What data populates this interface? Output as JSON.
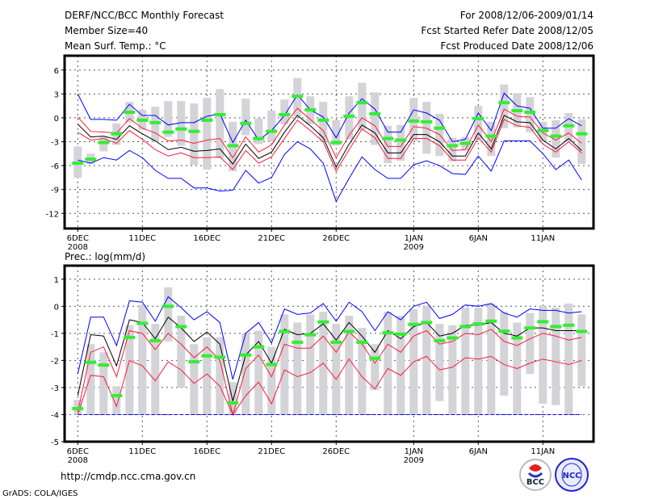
{
  "header": {
    "title": "DERF/NCC/BCC Monthly Forecast",
    "member_size": "Member Size=40",
    "temp_label": "Mean Surf. Temp.: °C",
    "period": "For 2008/12/06-2009/01/14",
    "started": "Fcst Started Refer Date 2008/12/05",
    "produced": "Fcst Produced Date 2008/12/06"
  },
  "footer": {
    "url": "http://cmdp.ncc.cma.gov.cn",
    "credit": "GrADS: COLA/IGES",
    "logo_bcc": "BCC",
    "logo_ncc": "NCC"
  },
  "colors": {
    "max_min": "#0000ff",
    "band": "#ff1a3c",
    "mean": "#000000",
    "obs": "#33ee33",
    "spread": "#d3d3d8"
  },
  "chart_data": [
    {
      "type": "line",
      "title": "Mean Surf. Temp.: °C",
      "x_start": "2008-12-06",
      "days": 40,
      "xticks": [
        {
          "day": 0,
          "label": "6DEC",
          "sub": "2008"
        },
        {
          "day": 5,
          "label": "11DEC"
        },
        {
          "day": 10,
          "label": "16DEC"
        },
        {
          "day": 15,
          "label": "21DEC"
        },
        {
          "day": 20,
          "label": "26DEC"
        },
        {
          "day": 26,
          "label": "1JAN",
          "sub": "2009"
        },
        {
          "day": 31,
          "label": "6JAN"
        },
        {
          "day": 36,
          "label": "11JAN"
        }
      ],
      "yticks": [
        6,
        3,
        0,
        -3,
        -6,
        -9,
        -12
      ],
      "ylim": [
        -13.9,
        7.8
      ],
      "grid": true,
      "spread": [
        [
          -7.5,
          -3.6
        ],
        [
          -5.8,
          -4.5
        ],
        [
          -4.2,
          -2.4
        ],
        [
          -3.4,
          -0.7
        ],
        [
          -0.6,
          2.0
        ],
        [
          -1.5,
          1.0
        ],
        [
          -3.0,
          1.4
        ],
        [
          -2.4,
          2.1
        ],
        [
          -3.5,
          2.1
        ],
        [
          -5.9,
          1.8
        ],
        [
          -6.5,
          2.5
        ],
        [
          -5.1,
          3.6
        ],
        [
          -6.7,
          -0.5
        ],
        [
          -2.2,
          2.4
        ],
        [
          -3.3,
          -0.1
        ],
        [
          -3.0,
          0.9
        ],
        [
          -0.8,
          2.3
        ],
        [
          0.2,
          5.0
        ],
        [
          -0.8,
          2.7
        ],
        [
          -3.0,
          2.0
        ],
        [
          -3.5,
          -0.3
        ],
        [
          -2.7,
          2.7
        ],
        [
          -1.5,
          4.4
        ],
        [
          -3.4,
          3.2
        ],
        [
          -5.7,
          -1.0
        ],
        [
          -5.4,
          -0.9
        ],
        [
          -2.9,
          2.5
        ],
        [
          -4.5,
          2.0
        ],
        [
          -4.8,
          0.5
        ],
        [
          -5.5,
          -2.5
        ],
        [
          -4.1,
          -2.4
        ],
        [
          -2.7,
          1.5
        ],
        [
          -4.8,
          -0.5
        ],
        [
          -1.3,
          4.2
        ],
        [
          -1.2,
          3.1
        ],
        [
          -1.8,
          2.6
        ],
        [
          -3.0,
          -0.5
        ],
        [
          -5.0,
          -0.3
        ],
        [
          -3.0,
          0.6
        ],
        [
          -5.8,
          -0.2
        ]
      ],
      "series": [
        {
          "name": "max",
          "color": "#0000ff",
          "values": [
            3.0,
            -0.2,
            -0.2,
            -0.3,
            1.7,
            0.3,
            0.3,
            -0.9,
            -0.6,
            -0.6,
            0.2,
            0.5,
            -3.1,
            -0.3,
            -2.8,
            -1.6,
            0.3,
            2.9,
            1.0,
            0.1,
            -2.5,
            0.6,
            2.4,
            1.1,
            -1.8,
            -1.8,
            1.0,
            0.6,
            -0.3,
            -3.0,
            -2.7,
            0.6,
            -1.6,
            3.1,
            1.5,
            1.2,
            -1.3,
            -1.3,
            -0.1,
            -1.0
          ]
        },
        {
          "name": "upper",
          "color": "#ff1a3c",
          "values": [
            0.1,
            -1.7,
            -1.8,
            -1.9,
            -0.1,
            -1.3,
            -1.9,
            -2.9,
            -2.8,
            -3.2,
            -2.8,
            -2.6,
            -5.0,
            -2.4,
            -4.3,
            -3.4,
            -0.9,
            1.2,
            -0.2,
            -1.6,
            -5.0,
            -2.2,
            0.0,
            -1.0,
            -3.6,
            -3.6,
            -1.1,
            -1.3,
            -2.1,
            -4.1,
            -4.0,
            -0.9,
            -3.0,
            1.1,
            0.2,
            0.1,
            -1.9,
            -2.8,
            -1.9,
            -3.2
          ]
        },
        {
          "name": "mean",
          "color": "#000000",
          "values": [
            -0.8,
            -2.4,
            -2.3,
            -2.7,
            -1.0,
            -2.0,
            -2.9,
            -4.0,
            -3.7,
            -4.2,
            -4.1,
            -3.9,
            -5.8,
            -3.3,
            -5.1,
            -4.3,
            -1.8,
            0.3,
            -1.0,
            -2.5,
            -6.2,
            -3.3,
            -0.9,
            -1.9,
            -4.4,
            -4.4,
            -2.1,
            -2.1,
            -3.0,
            -4.8,
            -4.8,
            -1.9,
            -3.9,
            0.3,
            -0.5,
            -0.6,
            -2.8,
            -3.9,
            -2.6,
            -4.1
          ]
        },
        {
          "name": "lower",
          "color": "#ff1a3c",
          "values": [
            -1.8,
            -2.8,
            -2.6,
            -3.2,
            -1.6,
            -2.7,
            -4.0,
            -4.8,
            -4.4,
            -5.0,
            -5.0,
            -4.9,
            -6.5,
            -4.1,
            -5.7,
            -4.9,
            -2.6,
            -0.3,
            -1.6,
            -3.0,
            -6.7,
            -4.0,
            -1.4,
            -2.5,
            -5.1,
            -5.1,
            -2.6,
            -2.6,
            -3.5,
            -5.3,
            -5.3,
            -2.5,
            -4.3,
            -0.2,
            -1.0,
            -1.2,
            -3.3,
            -4.3,
            -3.0,
            -4.4
          ]
        },
        {
          "name": "min",
          "color": "#0000ff",
          "values": [
            -5.3,
            -5.7,
            -5.0,
            -5.3,
            -4.1,
            -5.0,
            -6.6,
            -7.6,
            -7.6,
            -8.8,
            -8.8,
            -9.2,
            -9.1,
            -6.6,
            -8.2,
            -7.5,
            -4.6,
            -3.0,
            -3.9,
            -5.7,
            -10.5,
            -7.6,
            -4.9,
            -6.5,
            -7.6,
            -7.6,
            -5.9,
            -5.4,
            -6.0,
            -7.0,
            -7.1,
            -4.8,
            -6.7,
            -2.9,
            -2.9,
            -2.9,
            -4.5,
            -6.5,
            -5.3,
            -7.8
          ]
        }
      ],
      "obs": [
        -5.7,
        -5.2,
        -3.1,
        -2.0,
        0.7,
        -0.3,
        -0.6,
        -1.8,
        -1.4,
        -1.7,
        -0.3,
        0.4,
        -3.5,
        -0.7,
        -2.6,
        -1.7,
        0.4,
        2.7,
        1.0,
        -0.3,
        -3.1,
        0.2,
        1.9,
        0.5,
        -2.6,
        -2.8,
        -0.4,
        -0.5,
        -1.3,
        -3.5,
        -3.2,
        -0.1,
        -2.3,
        1.9,
        0.9,
        0.7,
        -1.6,
        -2.3,
        -1.0,
        -2.0
      ]
    },
    {
      "type": "line",
      "title": "Prec.: log(mm/d)",
      "x_start": "2008-12-06",
      "days": 40,
      "xticks": [
        {
          "day": 0,
          "label": "6DEC",
          "sub": "2008"
        },
        {
          "day": 5,
          "label": "11DEC"
        },
        {
          "day": 10,
          "label": "16DEC"
        },
        {
          "day": 15,
          "label": "21DEC"
        },
        {
          "day": 20,
          "label": "26DEC"
        },
        {
          "day": 26,
          "label": "1JAN",
          "sub": "2009"
        },
        {
          "day": 31,
          "label": "6JAN"
        },
        {
          "day": 36,
          "label": "11JAN"
        }
      ],
      "yticks": [
        1,
        0,
        -1,
        -2,
        -3,
        -4,
        -5
      ],
      "ylim": [
        -5,
        1.5
      ],
      "grid": true,
      "spread": [
        [
          -4,
          -3.45
        ],
        [
          -4,
          -1.4
        ],
        [
          -4,
          -1.7
        ],
        [
          -4,
          -2.95
        ],
        [
          -4,
          -0.7
        ],
        [
          -4,
          0.05
        ],
        [
          -4,
          -0.65
        ],
        [
          -1.3,
          0.7
        ],
        [
          -3.0,
          -0.35
        ],
        [
          -4,
          -1.4
        ],
        [
          -4,
          -1.15
        ],
        [
          -4,
          -1.15
        ],
        [
          -4,
          -2.8
        ],
        [
          -4,
          -1.0
        ],
        [
          -4,
          -0.9
        ],
        [
          -4,
          -1.5
        ],
        [
          -4,
          -0.3
        ],
        [
          -4,
          -0.6
        ],
        [
          -4,
          -0.3
        ],
        [
          -4,
          -0.2
        ],
        [
          -4,
          -0.65
        ],
        [
          -4,
          -0.35
        ],
        [
          -4,
          -0.8
        ],
        [
          -3.1,
          -1.4
        ],
        [
          -4,
          -0.2
        ],
        [
          -4,
          -0.35
        ],
        [
          -4,
          -0.1
        ],
        [
          -4,
          0.0
        ],
        [
          -3.5,
          -0.65
        ],
        [
          -4,
          -0.7
        ],
        [
          -4,
          -0.05
        ],
        [
          -4,
          -0.05
        ],
        [
          -4,
          0.1
        ],
        [
          -3.3,
          -0.2
        ],
        [
          -4,
          -0.6
        ],
        [
          -2.5,
          -0.25
        ],
        [
          -3.6,
          0.0
        ],
        [
          -3.65,
          -0.05
        ],
        [
          -4,
          0.1
        ],
        [
          -2.95,
          -0.3
        ]
      ],
      "series": [
        {
          "name": "max",
          "color": "#0000ff",
          "values": [
            -2.5,
            -0.4,
            -0.4,
            -1.45,
            0.2,
            0.15,
            -0.55,
            0.35,
            -0.05,
            -0.5,
            -0.2,
            -0.6,
            -2.7,
            -1.0,
            -0.6,
            -1.35,
            -0.1,
            -0.3,
            -0.25,
            0.1,
            -0.55,
            0.15,
            -0.2,
            -0.9,
            -0.2,
            -0.5,
            0.0,
            0.15,
            -0.45,
            -0.3,
            0.05,
            0.0,
            0.1,
            -0.25,
            -0.4,
            -0.1,
            -0.15,
            -0.15,
            -0.25,
            -0.2
          ]
        },
        {
          "name": "upper",
          "color": "#ff1a3c",
          "values": [
            -3.9,
            -1.7,
            -1.5,
            -2.6,
            -0.9,
            -1.0,
            -1.6,
            -1.0,
            -1.4,
            -1.9,
            -1.5,
            -2.0,
            -4.0,
            -2.3,
            -1.8,
            -2.6,
            -1.4,
            -1.55,
            -1.55,
            -1.1,
            -1.7,
            -0.95,
            -1.4,
            -2.1,
            -1.4,
            -1.7,
            -1.1,
            -0.9,
            -1.4,
            -1.3,
            -1.0,
            -1.05,
            -0.85,
            -1.3,
            -1.45,
            -1.2,
            -1.0,
            -1.1,
            -1.25,
            -1.15
          ]
        },
        {
          "name": "mean",
          "color": "#000000",
          "values": [
            -3.3,
            -1.05,
            -1.1,
            -2.2,
            -0.5,
            -0.6,
            -1.2,
            -0.4,
            -0.8,
            -1.3,
            -0.95,
            -1.4,
            -3.5,
            -1.8,
            -1.3,
            -2.1,
            -0.85,
            -1.05,
            -1.0,
            -0.65,
            -1.25,
            -0.6,
            -1.1,
            -1.7,
            -0.9,
            -1.2,
            -0.75,
            -0.6,
            -1.1,
            -1.0,
            -0.7,
            -0.7,
            -0.6,
            -1.0,
            -1.1,
            -0.8,
            -0.8,
            -0.9,
            -0.9,
            -0.9
          ]
        },
        {
          "name": "lower",
          "color": "#ff1a3c",
          "values": [
            -4.0,
            -2.55,
            -2.6,
            -3.7,
            -2.0,
            -2.2,
            -2.75,
            -2.05,
            -2.35,
            -2.85,
            -2.5,
            -2.95,
            -4.0,
            -3.3,
            -2.8,
            -3.6,
            -2.35,
            -2.6,
            -2.45,
            -2.1,
            -2.7,
            -1.95,
            -2.6,
            -3.05,
            -2.3,
            -2.55,
            -2.05,
            -1.85,
            -2.35,
            -2.25,
            -1.9,
            -1.95,
            -1.85,
            -2.15,
            -2.3,
            -2.1,
            -1.95,
            -2.05,
            -2.15,
            -2.0
          ]
        },
        {
          "name": "min",
          "color": "#0000ff",
          "dashed": true,
          "values": [
            -4,
            -4,
            -4,
            -4,
            -4,
            -4,
            -4,
            -4,
            -4,
            -4,
            -4,
            -4,
            -4,
            -4,
            -4,
            -4,
            -4,
            -4,
            -4,
            -4,
            -4,
            -4,
            -4,
            -4,
            -4,
            -4,
            -4,
            -4,
            -4,
            -4,
            -4,
            -4,
            -4,
            -4,
            -4,
            -4,
            -4,
            -4,
            -4,
            -4
          ]
        }
      ],
      "obs": [
        -3.78,
        -2.07,
        -2.17,
        -3.3,
        -1.15,
        -0.63,
        -1.27,
        0.0,
        -0.75,
        -2.05,
        -1.83,
        -1.88,
        -3.57,
        -1.8,
        -1.5,
        -2.15,
        -0.93,
        -1.33,
        -1.05,
        -0.58,
        -1.33,
        -0.93,
        -1.33,
        -1.92,
        -0.98,
        -1.03,
        -0.67,
        -0.6,
        -1.27,
        -1.17,
        -0.75,
        -0.65,
        -0.55,
        -0.92,
        -1.17,
        -0.8,
        -0.57,
        -0.75,
        -0.7,
        -0.93
      ]
    }
  ]
}
